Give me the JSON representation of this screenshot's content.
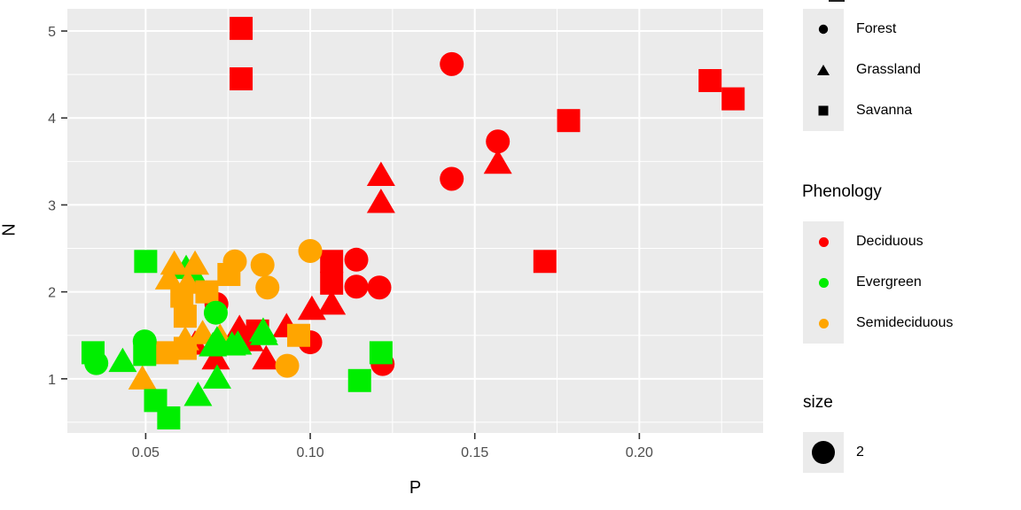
{
  "figure": {
    "panel_bg": "#EBEBEB",
    "grid_color": "#FFFFFF",
    "axis_text_color": "#4D4D4D",
    "tick_mark_color": "#333333"
  },
  "chart_data": {
    "type": "scatter",
    "title": "",
    "xlabel": "P",
    "ylabel": "N",
    "xlim": [
      0.0262,
      0.2376
    ],
    "ylim": [
      0.377,
      5.255
    ],
    "x_tick_values": [
      0.05,
      0.1,
      0.15,
      0.2
    ],
    "x_tick_labels": [
      "0.05",
      "0.10",
      "0.15",
      "0.20"
    ],
    "y_tick_values": [
      1,
      2,
      3,
      4,
      5
    ],
    "y_tick_labels": [
      "1",
      "2",
      "3",
      "4",
      "5"
    ],
    "x_minor_gridlines": [
      0.075,
      0.125,
      0.175,
      0.225
    ],
    "y_minor_gridlines": [
      0.5,
      1.5,
      2.5,
      3.5,
      4.5
    ],
    "grid": "white major and minor gridlines on gray panel",
    "legend_position": "right",
    "point_size": 2,
    "shape_map": {
      "Forest": "circle",
      "Grassland": "triangle",
      "Savanna": "square"
    },
    "color_map": {
      "Deciduous": "#FF0000",
      "Evergreen": "#00EE00",
      "Semideciduous": "#FFA500"
    },
    "columns": [
      "P",
      "N",
      "habitat",
      "phenology"
    ],
    "points": [
      [
        0.079,
        5.03,
        "Savanna",
        "Deciduous"
      ],
      [
        0.079,
        4.45,
        "Savanna",
        "Deciduous"
      ],
      [
        0.2215,
        4.43,
        "Savanna",
        "Deciduous"
      ],
      [
        0.2285,
        4.22,
        "Savanna",
        "Deciduous"
      ],
      [
        0.1785,
        3.97,
        "Savanna",
        "Deciduous"
      ],
      [
        0.1713,
        2.35,
        "Savanna",
        "Deciduous"
      ],
      [
        0.1065,
        2.35,
        "Savanna",
        "Deciduous"
      ],
      [
        0.1065,
        2.1,
        "Savanna",
        "Deciduous"
      ],
      [
        0.084,
        1.55,
        "Savanna",
        "Deciduous"
      ],
      [
        0.143,
        4.62,
        "Forest",
        "Deciduous"
      ],
      [
        0.157,
        3.73,
        "Forest",
        "Deciduous"
      ],
      [
        0.143,
        3.3,
        "Forest",
        "Deciduous"
      ],
      [
        0.114,
        2.37,
        "Forest",
        "Deciduous"
      ],
      [
        0.114,
        2.06,
        "Forest",
        "Deciduous"
      ],
      [
        0.121,
        2.05,
        "Forest",
        "Deciduous"
      ],
      [
        0.0715,
        1.86,
        "Forest",
        "Deciduous"
      ],
      [
        0.1,
        1.42,
        "Forest",
        "Deciduous"
      ],
      [
        0.122,
        1.17,
        "Forest",
        "Deciduous"
      ],
      [
        0.1215,
        3.34,
        "Grassland",
        "Deciduous"
      ],
      [
        0.1215,
        3.03,
        "Grassland",
        "Deciduous"
      ],
      [
        0.157,
        3.48,
        "Grassland",
        "Deciduous"
      ],
      [
        0.1005,
        1.8,
        "Grassland",
        "Deciduous"
      ],
      [
        0.1065,
        1.86,
        "Grassland",
        "Deciduous"
      ],
      [
        0.0928,
        1.6,
        "Grassland",
        "Deciduous"
      ],
      [
        0.0785,
        1.58,
        "Grassland",
        "Deciduous"
      ],
      [
        0.065,
        1.4,
        "Grassland",
        "Deciduous"
      ],
      [
        0.0713,
        1.23,
        "Grassland",
        "Deciduous"
      ],
      [
        0.0866,
        1.23,
        "Grassland",
        "Deciduous"
      ],
      [
        0.0816,
        1.44,
        "Grassland",
        "Deciduous"
      ],
      [
        0.0623,
        2.27,
        "Grassland",
        "Evergreen"
      ],
      [
        0.0645,
        2.2,
        "Grassland",
        "Evergreen"
      ],
      [
        0.1,
        2.47,
        "Forest",
        "Semideciduous"
      ],
      [
        0.0771,
        2.35,
        "Forest",
        "Semideciduous"
      ],
      [
        0.0855,
        2.31,
        "Forest",
        "Semideciduous"
      ],
      [
        0.087,
        2.05,
        "Forest",
        "Semideciduous"
      ],
      [
        0.093,
        1.15,
        "Forest",
        "Semideciduous"
      ],
      [
        0.0587,
        2.32,
        "Grassland",
        "Semideciduous"
      ],
      [
        0.065,
        2.32,
        "Grassland",
        "Semideciduous"
      ],
      [
        0.0571,
        2.15,
        "Grassland",
        "Semideciduous"
      ],
      [
        0.0628,
        2.1,
        "Grassland",
        "Semideciduous"
      ],
      [
        0.0673,
        1.52,
        "Grassland",
        "Semideciduous"
      ],
      [
        0.0726,
        1.48,
        "Grassland",
        "Semideciduous"
      ],
      [
        0.062,
        1.45,
        "Grassland",
        "Semideciduous"
      ],
      [
        0.049,
        1.0,
        "Grassland",
        "Semideciduous"
      ],
      [
        0.0753,
        2.2,
        "Savanna",
        "Semideciduous"
      ],
      [
        0.0686,
        2.0,
        "Savanna",
        "Semideciduous"
      ],
      [
        0.061,
        1.95,
        "Savanna",
        "Semideciduous"
      ],
      [
        0.062,
        1.72,
        "Savanna",
        "Semideciduous"
      ],
      [
        0.062,
        1.35,
        "Savanna",
        "Semideciduous"
      ],
      [
        0.0565,
        1.3,
        "Savanna",
        "Semideciduous"
      ],
      [
        0.0965,
        1.5,
        "Savanna",
        "Semideciduous"
      ],
      [
        0.0713,
        1.76,
        "Forest",
        "Evergreen"
      ],
      [
        0.035,
        1.18,
        "Forest",
        "Evergreen"
      ],
      [
        0.0497,
        1.43,
        "Forest",
        "Evergreen"
      ],
      [
        0.043,
        1.2,
        "Grassland",
        "Evergreen"
      ],
      [
        0.0717,
        1.45,
        "Grassland",
        "Evergreen"
      ],
      [
        0.0762,
        1.39,
        "Grassland",
        "Evergreen"
      ],
      [
        0.0704,
        1.38,
        "Grassland",
        "Evergreen"
      ],
      [
        0.078,
        1.4,
        "Grassland",
        "Evergreen"
      ],
      [
        0.0857,
        1.55,
        "Grassland",
        "Evergreen"
      ],
      [
        0.086,
        1.51,
        "Grassland",
        "Evergreen"
      ],
      [
        0.0659,
        0.81,
        "Grassland",
        "Evergreen"
      ],
      [
        0.0717,
        1.01,
        "Grassland",
        "Evergreen"
      ],
      [
        0.05,
        2.35,
        "Savanna",
        "Evergreen"
      ],
      [
        0.034,
        1.3,
        "Savanna",
        "Evergreen"
      ],
      [
        0.0497,
        1.28,
        "Savanna",
        "Evergreen"
      ],
      [
        0.053,
        0.75,
        "Savanna",
        "Evergreen"
      ],
      [
        0.057,
        0.55,
        "Savanna",
        "Evergreen"
      ],
      [
        0.1215,
        1.3,
        "Savanna",
        "Evergreen"
      ],
      [
        0.115,
        0.98,
        "Savanna",
        "Evergreen"
      ]
    ]
  },
  "legends": {
    "shape": {
      "title": "",
      "items": [
        {
          "label": "Forest",
          "shape": "circle"
        },
        {
          "label": "Grassland",
          "shape": "triangle"
        },
        {
          "label": "Savanna",
          "shape": "square"
        }
      ]
    },
    "color": {
      "title": "Phenology",
      "items": [
        {
          "label": "Deciduous",
          "color": "#FF0000"
        },
        {
          "label": "Evergreen",
          "color": "#00EE00"
        },
        {
          "label": "Semideciduous",
          "color": "#FFA500"
        }
      ]
    },
    "size": {
      "title": "size",
      "items": [
        {
          "label": "2"
        }
      ]
    }
  }
}
